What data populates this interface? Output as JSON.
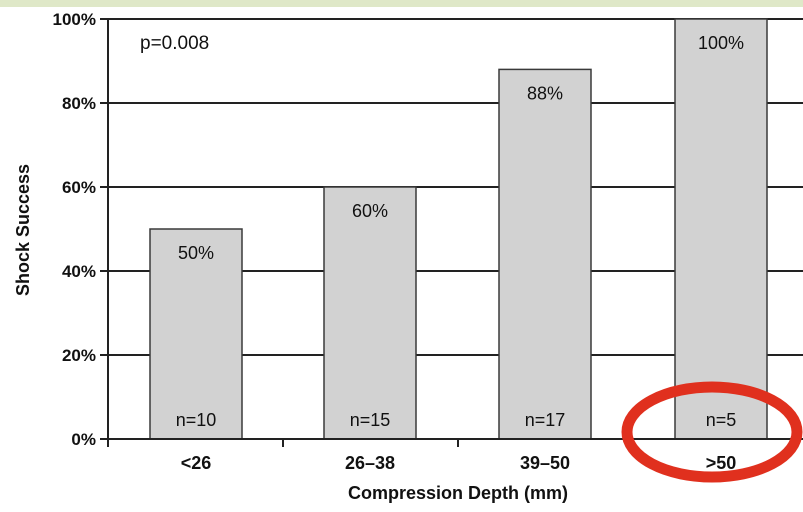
{
  "colors": {
    "bar_fill": "#d2d2d2",
    "bar_stroke": "#3a3a3a",
    "gridline": "#222222",
    "text": "#111111",
    "highlight_ellipse": "#e0301e",
    "top_strip": "#dfe8c8"
  },
  "chart_data": {
    "type": "bar",
    "categories": [
      "<26",
      "26–38",
      "39–50",
      ">50"
    ],
    "values": [
      50,
      60,
      88,
      100
    ],
    "value_labels": [
      "50%",
      "60%",
      "88%",
      "100%"
    ],
    "sample_labels": [
      "n=10",
      "n=15",
      "n=17",
      "n=5"
    ],
    "annotation": "p=0.008",
    "xlabel": "Compression Depth (mm)",
    "ylabel": "Shock Success",
    "ylim": [
      0,
      100
    ],
    "yticks": [
      "0%",
      "20%",
      "40%",
      "60%",
      "80%",
      "100%"
    ],
    "grid": true,
    "highlight": {
      "category": ">50",
      "shape": "ellipse"
    }
  }
}
